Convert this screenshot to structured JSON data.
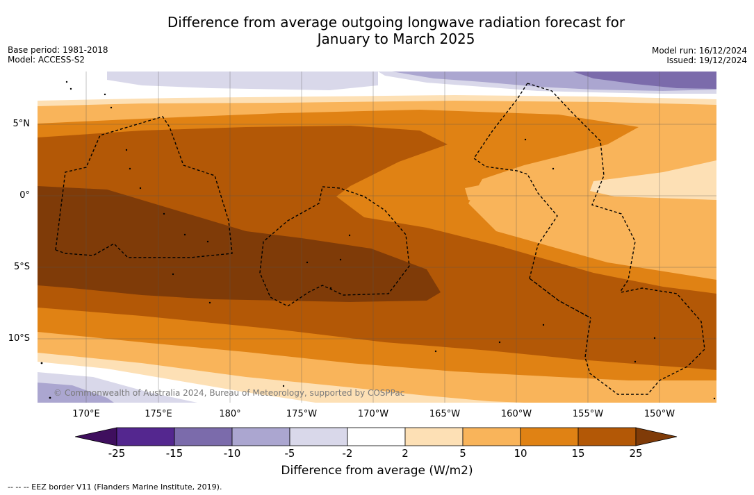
{
  "title_line1": "Difference from average outgoing longwave radiation forecast for",
  "title_line2": "January to March 2025",
  "meta_left": {
    "base_period": "Base period: 1981-2018",
    "model": "Model: ACCESS-S2"
  },
  "meta_right": {
    "model_run": "Model run: 16/12/2024",
    "issued": "Issued: 19/12/2024"
  },
  "copyright": "© Commonwealth of Australia 2024, Bureau of Meteorology, supported by COSPPac",
  "lat_labels": [
    "5°N",
    "0°",
    "5°S",
    "10°S"
  ],
  "lon_labels": [
    "170°E",
    "175°E",
    "180°",
    "175°W",
    "170°W",
    "165°W",
    "160°W",
    "155°W",
    "150°W"
  ],
  "colorbar": {
    "ticks": [
      "-25",
      "-15",
      "-10",
      "-5",
      "-2",
      "2",
      "5",
      "10",
      "15",
      "25"
    ],
    "colors": [
      "#3f0f5e",
      "#54278f",
      "#7b6bab",
      "#aba6d0",
      "#d9d8ea",
      "#ffffff",
      "#fde0b5",
      "#f9b45a",
      "#e08214",
      "#b35806",
      "#7f3b08"
    ],
    "label": "Difference from average (W/m2)"
  },
  "legend_note": "-- -- -- EEZ border V11 (Flanders Marine Institute, 2019)."
}
